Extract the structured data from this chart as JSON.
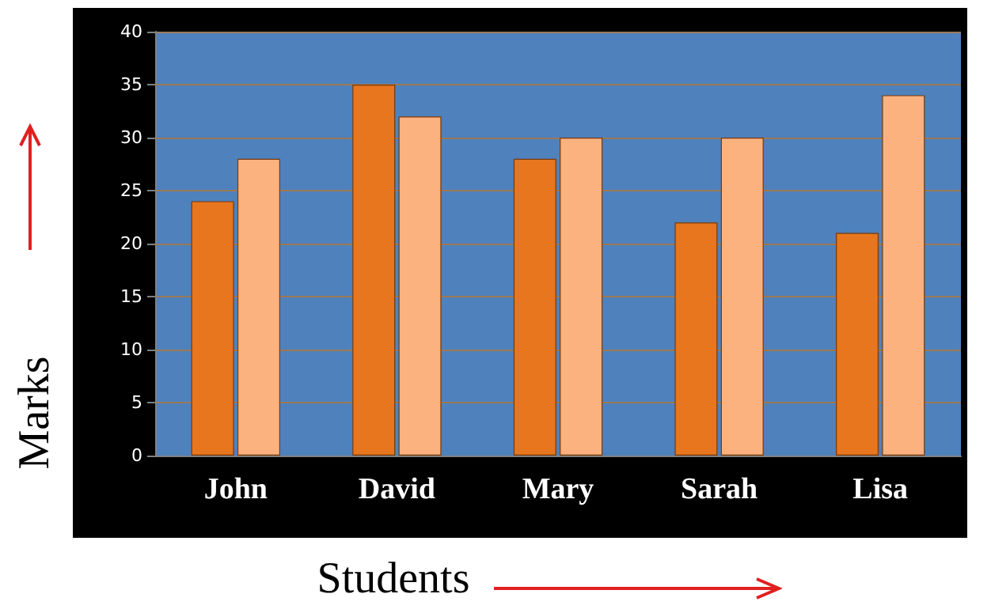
{
  "chart_data": {
    "type": "bar",
    "xlabel": "Students",
    "ylabel": "Marks",
    "categories": [
      "John",
      "David",
      "Mary",
      "Sarah",
      "Lisa"
    ],
    "series": [
      {
        "color": "#e8761e",
        "values": [
          24,
          35,
          28,
          22,
          21
        ]
      },
      {
        "color": "#fbb27e",
        "values": [
          28,
          32,
          30,
          30,
          34
        ]
      }
    ],
    "ylim": [
      0,
      40
    ],
    "yticks": [
      0,
      5,
      10,
      15,
      20,
      25,
      30,
      35,
      40
    ],
    "grid": "y"
  }
}
